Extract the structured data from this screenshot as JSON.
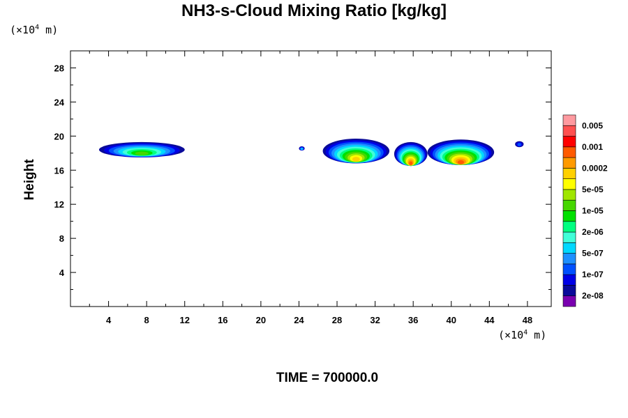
{
  "chart_data": {
    "type": "heatmap",
    "title": "NH3-s-Cloud Mixing Ratio [kg/kg]",
    "xlabel": "",
    "ylabel": "Height",
    "x_unit": {
      "prefix": "(×10",
      "exp": "4",
      "suffix": " m)"
    },
    "y_unit": {
      "prefix": "(×10",
      "exp": "4",
      "suffix": " m)"
    },
    "xlim": [
      0,
      50.5
    ],
    "ylim": [
      0,
      30
    ],
    "x_ticks": [
      "4",
      "8",
      "12",
      "16",
      "20",
      "24",
      "28",
      "32",
      "36",
      "40",
      "44",
      "48"
    ],
    "y_ticks": [
      "4",
      "8",
      "12",
      "16",
      "20",
      "24",
      "28"
    ],
    "x_tick_values": [
      4,
      8,
      12,
      16,
      20,
      24,
      28,
      32,
      36,
      40,
      44,
      48
    ],
    "y_tick_values": [
      4,
      8,
      12,
      16,
      20,
      24,
      28
    ],
    "colorbar": {
      "colors": [
        "#7a00b0",
        "#0a0a9a",
        "#0000e6",
        "#0050ff",
        "#1e90ff",
        "#00d8ff",
        "#40ffd8",
        "#00ff80",
        "#00e000",
        "#46d700",
        "#a0e600",
        "#ffff00",
        "#ffd000",
        "#ff9a00",
        "#ff5a00",
        "#ff0000",
        "#ff5050",
        "#ff9aa0"
      ],
      "labels": [
        "2e-08",
        "1e-07",
        "5e-07",
        "2e-06",
        "1e-05",
        "5e-05",
        "0.0002",
        "0.001",
        "0.005"
      ]
    },
    "cloud_regions": [
      {
        "x": [
          3,
          12
        ],
        "y": [
          17.5,
          19.3
        ],
        "max_level": 9
      },
      {
        "x": [
          24,
          24.6
        ],
        "y": [
          18.3,
          18.8
        ],
        "max_level": 5
      },
      {
        "x": [
          26.5,
          33.5
        ],
        "y": [
          16.8,
          19.7
        ],
        "max_level": 12
      },
      {
        "x": [
          34,
          37.5
        ],
        "y": [
          16.5,
          19.3
        ],
        "max_level": 14
      },
      {
        "x": [
          37.5,
          44.5
        ],
        "y": [
          16.6,
          19.6
        ],
        "max_level": 14
      },
      {
        "x": [
          46.7,
          47.6
        ],
        "y": [
          18.7,
          19.4
        ],
        "max_level": 3
      }
    ]
  },
  "time_label": "TIME = 700000.0"
}
